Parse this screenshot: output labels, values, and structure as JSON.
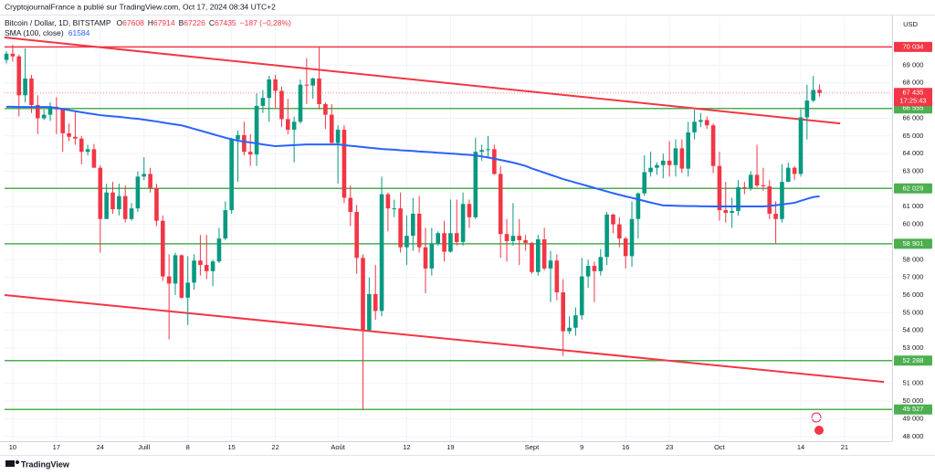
{
  "chart_data": {
    "type": "candlestick",
    "publisher": "CryptojournalFrance a publié sur TradingView.com, Oct 17, 2024 08:34 UTC+2",
    "symbol": "Bitcoin / Dollar, 1D, BITSTAMP",
    "quote": [
      {
        "label": "O",
        "value": 67608
      },
      {
        "label": "H",
        "value": 67914
      },
      {
        "label": "B",
        "value": 67226
      },
      {
        "label": "C",
        "value": 67435
      }
    ],
    "change": "−187 (−0,28%)",
    "indicator": {
      "name": "SMA (100, close)",
      "value": 61584,
      "color": "#2962ff"
    },
    "currency": "USD",
    "footer": "TradingView",
    "up_color": "#089981",
    "down_color": "#f23645",
    "xlim": [
      -1.3,
      140.6
    ],
    "ylim": [
      47730,
      71760
    ],
    "xticks": [
      {
        "value": 0,
        "label": "10"
      },
      {
        "value": 7,
        "label": "17"
      },
      {
        "value": 14,
        "label": "24"
      },
      {
        "value": 21,
        "label": "Juill"
      },
      {
        "value": 28,
        "label": "8"
      },
      {
        "value": 35,
        "label": "15"
      },
      {
        "value": 42,
        "label": "22"
      },
      {
        "value": 52,
        "label": "Août"
      },
      {
        "value": 63,
        "label": "12"
      },
      {
        "value": 70,
        "label": "19"
      },
      {
        "value": 83,
        "label": "Sept"
      },
      {
        "value": 91,
        "label": "9"
      },
      {
        "value": 98,
        "label": "16"
      },
      {
        "value": 105,
        "label": "23"
      },
      {
        "value": 113,
        "label": "Oct"
      },
      {
        "value": 126,
        "label": "14"
      },
      {
        "value": 133,
        "label": "21"
      }
    ],
    "yticks": [
      {
        "value": 69000,
        "label": "69 000"
      },
      {
        "value": 68000,
        "label": "68 000"
      },
      {
        "value": 66000,
        "label": "66 000"
      },
      {
        "value": 65000,
        "label": "65 000"
      },
      {
        "value": 64000,
        "label": "64 000"
      },
      {
        "value": 63000,
        "label": "63 000"
      },
      {
        "value": 61000,
        "label": "61 000"
      },
      {
        "value": 60000,
        "label": "60 000"
      },
      {
        "value": 58000,
        "label": "58 000"
      },
      {
        "value": 57000,
        "label": "57 000"
      },
      {
        "value": 56000,
        "label": "56 000"
      },
      {
        "value": 55000,
        "label": "55 000"
      },
      {
        "value": 54000,
        "label": "54 000"
      },
      {
        "value": 53000,
        "label": "53 000"
      },
      {
        "value": 51000,
        "label": "51 000"
      },
      {
        "value": 50000,
        "label": "50 000"
      },
      {
        "value": 49000,
        "label": "49 000"
      },
      {
        "value": 48000,
        "label": "48 000"
      }
    ],
    "levels": [
      {
        "value": 70034,
        "label": "70 034",
        "color": "#f23645"
      },
      {
        "value": 66555,
        "label": "66 555",
        "color": "#4caf50"
      },
      {
        "value": 62029,
        "label": "62 029",
        "color": "#4caf50"
      },
      {
        "value": 58901,
        "label": "58 901",
        "color": "#4caf50"
      },
      {
        "value": 52288,
        "label": "52 288",
        "color": "#4caf50"
      },
      {
        "value": 49527,
        "label": "49 527",
        "color": "#4caf50"
      }
    ],
    "last_price": {
      "value": 67435,
      "label": "67 435",
      "countdown": "17:25:43"
    },
    "trendlines": [
      {
        "x": [
          -1.3,
          132.3
        ],
        "y": [
          70570,
          65710
        ],
        "color": "#f23645"
      },
      {
        "x": [
          -1.3,
          139.3
        ],
        "y": [
          56000,
          51085
        ],
        "color": "#f23645"
      }
    ],
    "x": [
      -1,
      0,
      1,
      2,
      3,
      4,
      5,
      6,
      7,
      8,
      9,
      10,
      11,
      12,
      13,
      14,
      15,
      16,
      17,
      18,
      19,
      20,
      21,
      22,
      23,
      24,
      25,
      26,
      27,
      28,
      29,
      30,
      31,
      32,
      33,
      34,
      35,
      36,
      37,
      38,
      39,
      40,
      41,
      42,
      43,
      44,
      45,
      46,
      47,
      48,
      49,
      50,
      51,
      52,
      53,
      54,
      55,
      56,
      57,
      58,
      59,
      60,
      61,
      62,
      63,
      64,
      65,
      66,
      67,
      68,
      69,
      70,
      71,
      72,
      73,
      74,
      75,
      76,
      77,
      78,
      79,
      80,
      81,
      82,
      83,
      84,
      85,
      86,
      87,
      88,
      89,
      90,
      91,
      92,
      93,
      94,
      95,
      96,
      97,
      98,
      99,
      100,
      101,
      102,
      103,
      104,
      105,
      106,
      107,
      108,
      109,
      110,
      111,
      112,
      113,
      114,
      115,
      116,
      117,
      118,
      119,
      120,
      121,
      122,
      123,
      124,
      125,
      126,
      127,
      128,
      129
    ],
    "ohlc": [
      [
        69300,
        69800,
        69100,
        69650
      ],
      [
        69650,
        70150,
        69200,
        69500
      ],
      [
        69500,
        69600,
        66100,
        67300
      ],
      [
        67300,
        69950,
        66900,
        68250
      ],
      [
        68250,
        68450,
        66300,
        66750
      ],
      [
        66750,
        67300,
        65100,
        66000
      ],
      [
        66000,
        66500,
        65900,
        66200
      ],
      [
        66200,
        66900,
        65850,
        66650
      ],
      [
        66650,
        67200,
        65100,
        66500
      ],
      [
        66500,
        66550,
        64100,
        65150
      ],
      [
        65150,
        65700,
        64700,
        64950
      ],
      [
        64950,
        66400,
        64500,
        64850
      ],
      [
        64850,
        65000,
        63400,
        64100
      ],
      [
        64100,
        64500,
        63900,
        64250
      ],
      [
        64250,
        64550,
        63200,
        63200
      ],
      [
        63200,
        63350,
        58400,
        60300
      ],
      [
        60300,
        62300,
        60300,
        61800
      ],
      [
        61800,
        62400,
        60600,
        60850
      ],
      [
        60850,
        62300,
        60500,
        61600
      ],
      [
        61600,
        62200,
        60100,
        60300
      ],
      [
        60300,
        61200,
        60200,
        60900
      ],
      [
        60900,
        63000,
        60700,
        62700
      ],
      [
        62700,
        63800,
        62500,
        62850
      ],
      [
        62850,
        63200,
        61800,
        62050
      ],
      [
        62050,
        62300,
        59900,
        60200
      ],
      [
        60200,
        60500,
        56800,
        57050
      ],
      [
        57050,
        58300,
        53500,
        56650
      ],
      [
        56650,
        58400,
        56000,
        58250
      ],
      [
        58250,
        58300,
        55800,
        55850
      ],
      [
        55850,
        58200,
        54300,
        56700
      ],
      [
        56700,
        58300,
        56300,
        57950
      ],
      [
        57950,
        59400,
        57100,
        57700
      ],
      [
        57700,
        59400,
        56900,
        57350
      ],
      [
        57350,
        58000,
        56500,
        57900
      ],
      [
        57900,
        59800,
        57800,
        59200
      ],
      [
        59200,
        61300,
        59100,
        60800
      ],
      [
        60800,
        64900,
        60600,
        64800
      ],
      [
        64800,
        65300,
        62400,
        65050
      ],
      [
        65050,
        65800,
        63900,
        64100
      ],
      [
        64100,
        65100,
        63300,
        63950
      ],
      [
        63950,
        67400,
        63300,
        66700
      ],
      [
        66700,
        67600,
        66300,
        67150
      ],
      [
        67150,
        68400,
        65800,
        68200
      ],
      [
        68200,
        68450,
        66600,
        67550
      ],
      [
        67550,
        67800,
        65500,
        65950
      ],
      [
        65950,
        67100,
        65100,
        65350
      ],
      [
        65350,
        66100,
        63500,
        65800
      ],
      [
        65800,
        68200,
        65700,
        67900
      ],
      [
        67900,
        69400,
        66800,
        67850
      ],
      [
        67850,
        68300,
        67100,
        68250
      ],
      [
        68250,
        70000,
        66500,
        66800
      ],
      [
        66800,
        66900,
        65400,
        66200
      ],
      [
        66200,
        66800,
        64600,
        64600
      ],
      [
        64600,
        65600,
        62300,
        65350
      ],
      [
        65350,
        65600,
        61200,
        61500
      ],
      [
        61500,
        62200,
        59900,
        60700
      ],
      [
        60700,
        61100,
        57200,
        58100
      ],
      [
        58100,
        58300,
        49500,
        54000
      ],
      [
        54000,
        57000,
        54000,
        56050
      ],
      [
        56050,
        57700,
        54600,
        55100
      ],
      [
        55100,
        62700,
        54800,
        61700
      ],
      [
        61700,
        61800,
        59600,
        60900
      ],
      [
        60900,
        61400,
        60400,
        60900
      ],
      [
        60900,
        61800,
        58400,
        58700
      ],
      [
        58700,
        60500,
        57700,
        59350
      ],
      [
        59350,
        61500,
        58500,
        60600
      ],
      [
        60600,
        61600,
        58400,
        58700
      ],
      [
        58700,
        59800,
        56100,
        57500
      ],
      [
        57500,
        59800,
        57100,
        58900
      ],
      [
        58900,
        59600,
        58800,
        59500
      ],
      [
        59500,
        60200,
        57900,
        58450
      ],
      [
        58450,
        61400,
        58400,
        59500
      ],
      [
        59500,
        61400,
        58800,
        59000
      ],
      [
        59000,
        61800,
        58800,
        61150
      ],
      [
        61150,
        61400,
        59800,
        60400
      ],
      [
        60400,
        64900,
        60300,
        64100
      ],
      [
        64100,
        64500,
        63600,
        64200
      ],
      [
        64200,
        65000,
        63800,
        64250
      ],
      [
        64250,
        64500,
        62800,
        62850
      ],
      [
        62850,
        63300,
        58100,
        59450
      ],
      [
        59450,
        60300,
        57900,
        59050
      ],
      [
        59050,
        61200,
        58800,
        59350
      ],
      [
        59350,
        60300,
        57700,
        59100
      ],
      [
        59100,
        59400,
        58500,
        58950
      ],
      [
        58950,
        59000,
        57200,
        57300
      ],
      [
        57300,
        59400,
        57100,
        59150
      ],
      [
        59150,
        59800,
        57400,
        57500
      ],
      [
        57500,
        58500,
        55600,
        57950
      ],
      [
        57950,
        58300,
        55700,
        56150
      ],
      [
        56150,
        56900,
        52550,
        53950
      ],
      [
        53950,
        54800,
        53800,
        54150
      ],
      [
        54150,
        55300,
        53700,
        54850
      ],
      [
        54850,
        58100,
        54600,
        57050
      ],
      [
        57050,
        58000,
        56400,
        57650
      ],
      [
        57650,
        57900,
        55600,
        57350
      ],
      [
        57350,
        58600,
        57100,
        58150
      ],
      [
        58150,
        60700,
        57700,
        60550
      ],
      [
        60550,
        60600,
        59500,
        60000
      ],
      [
        60000,
        60400,
        58700,
        59200
      ],
      [
        59200,
        59300,
        57500,
        58200
      ],
      [
        58200,
        61300,
        57600,
        60300
      ],
      [
        60300,
        61800,
        59200,
        61750
      ],
      [
        61750,
        63900,
        61600,
        62950
      ],
      [
        62950,
        64100,
        62700,
        63200
      ],
      [
        63200,
        63500,
        62800,
        63350
      ],
      [
        63350,
        64000,
        62600,
        63600
      ],
      [
        63600,
        64700,
        62700,
        63350
      ],
      [
        63350,
        64800,
        62700,
        64300
      ],
      [
        64300,
        64800,
        62900,
        63150
      ],
      [
        63150,
        65800,
        62700,
        65200
      ],
      [
        65200,
        66500,
        64800,
        65800
      ],
      [
        65800,
        66300,
        65500,
        65900
      ],
      [
        65900,
        66100,
        65400,
        65600
      ],
      [
        65600,
        65700,
        62900,
        63300
      ],
      [
        63300,
        64100,
        60200,
        60800
      ],
      [
        60800,
        62400,
        60100,
        60650
      ],
      [
        60650,
        61500,
        59800,
        60750
      ],
      [
        60750,
        62500,
        60500,
        62100
      ],
      [
        62100,
        62400,
        61700,
        62050
      ],
      [
        62050,
        63000,
        61900,
        62800
      ],
      [
        62800,
        64500,
        62100,
        62200
      ],
      [
        62200,
        63200,
        61900,
        62150
      ],
      [
        62150,
        62500,
        60300,
        60600
      ],
      [
        60600,
        61300,
        58900,
        60300
      ],
      [
        60300,
        63400,
        60100,
        62400
      ],
      [
        62400,
        63500,
        62400,
        63200
      ],
      [
        63200,
        63300,
        62500,
        62850
      ],
      [
        62850,
        66500,
        62700,
        66050
      ],
      [
        66050,
        67900,
        64800,
        67000
      ],
      [
        67000,
        68400,
        66900,
        67600
      ],
      [
        67608,
        67914,
        67226,
        67435
      ]
    ],
    "sma": [
      66650,
      66650,
      66640,
      66640,
      66640,
      66640,
      66640,
      66640,
      66580,
      66520,
      66460,
      66400,
      66340,
      66280,
      66230,
      66175,
      66140,
      66110,
      66080,
      66040,
      66000,
      65970,
      65920,
      65870,
      65820,
      65760,
      65700,
      65650,
      65600,
      65500,
      65400,
      65300,
      65200,
      65100,
      65000,
      64900,
      64810,
      64730,
      64680,
      64630,
      64580,
      64520,
      64470,
      64420,
      64440,
      64460,
      64480,
      64500,
      64520,
      64520,
      64520,
      64520,
      64520,
      64520,
      64480,
      64440,
      64410,
      64370,
      64330,
      64300,
      64260,
      64240,
      64220,
      64190,
      64170,
      64150,
      64120,
      64100,
      64080,
      64050,
      64030,
      64000,
      63980,
      63950,
      63930,
      63900,
      63840,
      63780,
      63710,
      63640,
      63570,
      63490,
      63400,
      63300,
      63160,
      63040,
      62920,
      62800,
      62680,
      62560,
      62460,
      62360,
      62260,
      62160,
      62060,
      61960,
      61860,
      61760,
      61670,
      61580,
      61500,
      61410,
      61320,
      61230,
      61150,
      61070,
      61060,
      61050,
      61040,
      61030,
      61030,
      61020,
      61020,
      61010,
      61010,
      61010,
      61010,
      61010,
      61010,
      61010,
      61010,
      61010,
      61040,
      61080,
      61120,
      61170,
      61215,
      61330,
      61440,
      61540,
      61584
    ]
  }
}
